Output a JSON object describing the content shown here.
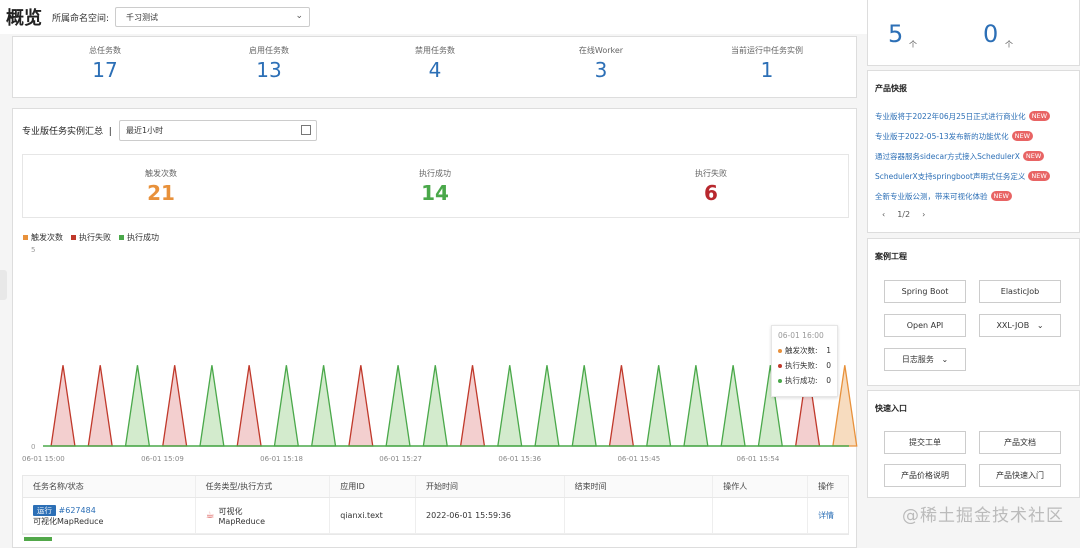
{
  "header": {
    "title": "概览",
    "namespace_label": "所属命名空间:",
    "namespace_value": "千习测试"
  },
  "stats": [
    {
      "label": "总任务数",
      "value": "17"
    },
    {
      "label": "启用任务数",
      "value": "13"
    },
    {
      "label": "禁用任务数",
      "value": "4"
    },
    {
      "label": "在线Worker",
      "value": "3"
    },
    {
      "label": "当前运行中任务实例",
      "value": "1"
    }
  ],
  "summary": {
    "title": "专业版任务实例汇总",
    "range": "最近1小时",
    "kpis": [
      {
        "label": "触发次数",
        "value": "21",
        "color": "#e8913b"
      },
      {
        "label": "执行成功",
        "value": "14",
        "color": "#4aa84a"
      },
      {
        "label": "执行失败",
        "value": "6",
        "color": "#b8282e"
      }
    ]
  },
  "chart_data": {
    "type": "area",
    "legend": [
      "触发次数",
      "执行失败",
      "执行成功"
    ],
    "colors": {
      "trigger": "#e8913b",
      "fail": "#c0392b",
      "success": "#4aa84a"
    },
    "ylim": [
      0,
      5
    ],
    "yticks": [
      "0",
      "5"
    ],
    "xticks": [
      "06-01 15:00",
      "06-01 15:09",
      "06-01 15:18",
      "06-01 15:27",
      "06-01 15:36",
      "06-01 15:45",
      "06-01 15:54"
    ],
    "spikes": [
      "fail",
      "fail",
      "success",
      "fail",
      "success",
      "fail",
      "success",
      "success",
      "fail",
      "success",
      "success",
      "fail",
      "success",
      "success",
      "success",
      "fail",
      "success",
      "success",
      "success",
      "success",
      "fail",
      "trigger"
    ],
    "spike_value": 1,
    "tooltip": {
      "title": "06-01 16:00",
      "rows": [
        {
          "name": "触发次数:",
          "value": "1",
          "color": "#e8913b"
        },
        {
          "name": "执行失败:",
          "value": "0",
          "color": "#c0392b"
        },
        {
          "name": "执行成功:",
          "value": "0",
          "color": "#4aa84a"
        }
      ]
    }
  },
  "table": {
    "headers": [
      "任务名称/状态",
      "任务类型/执行方式",
      "应用ID",
      "开始时间",
      "结束时间",
      "操作人",
      "操作"
    ],
    "row": {
      "status": "运行",
      "id": "#627484",
      "name": "可视化MapReduce",
      "type": "可视化",
      "mode": "MapReduce",
      "app": "qianxi.text",
      "start": "2022-06-01 15:59:36",
      "end": "",
      "operator": "",
      "action": "详情"
    }
  },
  "right": {
    "counts": [
      {
        "value": "5",
        "unit": "个"
      },
      {
        "value": "0",
        "unit": "个"
      }
    ],
    "news_title": "产品快报",
    "news": [
      "专业版将于2022年06月25日正式进行商业化",
      "专业版于2022-05-13发布新的功能优化",
      "通过容器服务sidecar方式接入SchedulerX",
      "SchedulerX支持springboot声明式任务定义",
      "全新专业版公测，带来可视化体验"
    ],
    "new_tag": "NEW",
    "pager": "1/2",
    "cases_title": "案例工程",
    "cases": [
      "Spring Boot",
      "ElasticJob",
      "Open API",
      "XXL-JOB",
      "日志服务"
    ],
    "quick_title": "快速入口",
    "quick": [
      "提交工单",
      "产品文档",
      "产品价格说明",
      "产品快速入门"
    ]
  },
  "watermark": "@稀土掘金技术社区"
}
